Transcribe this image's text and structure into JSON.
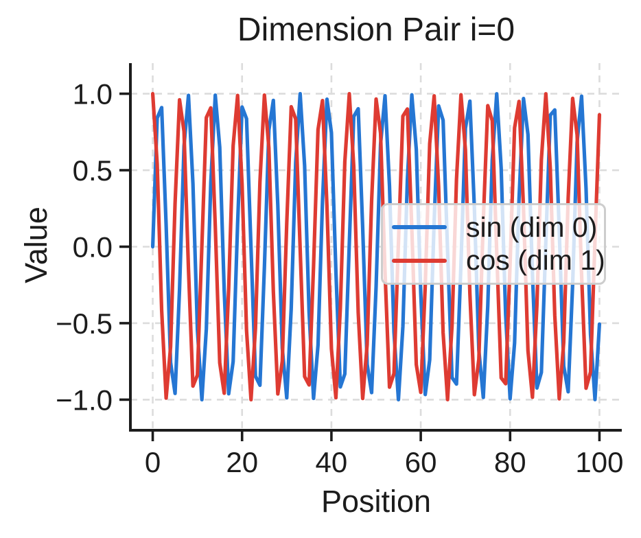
{
  "figure": {
    "background": "#ffffff",
    "text_color": "#1c1c1c",
    "spine_color": "#1c1c1c",
    "grid_color": "#dcdcdc",
    "legend_border_color": "#cdcdcd"
  },
  "chart_data": {
    "type": "line",
    "title": "Dimension Pair i=0",
    "xlabel": "Position",
    "ylabel": "Value",
    "xlim": [
      -5,
      105
    ],
    "ylim": [
      -1.2,
      1.2
    ],
    "xticks": [
      0,
      20,
      40,
      60,
      80,
      100
    ],
    "xtick_labels": [
      "0",
      "20",
      "40",
      "60",
      "80",
      "100"
    ],
    "yticks": [
      -1.0,
      -0.5,
      0.0,
      0.5,
      1.0
    ],
    "ytick_labels": [
      "−1.0",
      "−0.5",
      "0.0",
      "0.5",
      "1.0"
    ],
    "grid": {
      "visible": true,
      "style": "dashed",
      "axes": "both"
    },
    "x": {
      "start": 0,
      "end": 100,
      "step": 1,
      "description": "integer positions 0 to 100"
    },
    "series": [
      {
        "name": "sin (dim 0)",
        "fn": "sin",
        "formula": "sin(position)",
        "amplitude": 1.0,
        "frequency_rad_per_unit": 1.0,
        "y_range": [
          -1.0,
          1.0
        ],
        "color": "#2576d3"
      },
      {
        "name": "cos (dim 1)",
        "fn": "cos",
        "formula": "cos(position)",
        "amplitude": 1.0,
        "frequency_rad_per_unit": 1.0,
        "y_range": [
          -1.0,
          1.0
        ],
        "color": "#de3b32"
      }
    ],
    "legend": {
      "location": "center right",
      "entries": [
        "sin (dim 0)",
        "cos (dim 1)"
      ]
    }
  }
}
